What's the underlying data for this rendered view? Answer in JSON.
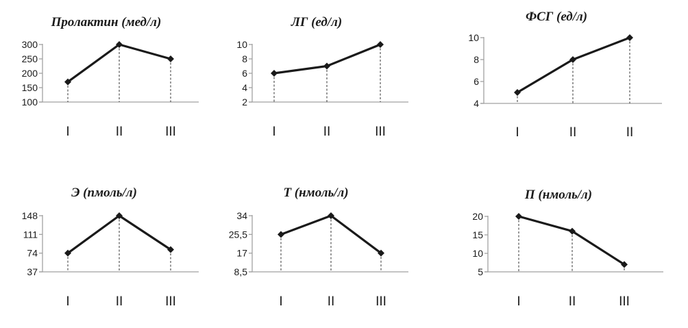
{
  "chart_data": [
    {
      "type": "line",
      "title": "Пролактин (мед/л)",
      "categories": [
        "I",
        "II",
        "III"
      ],
      "yticks": [
        "100",
        "150",
        "200",
        "250",
        "300"
      ],
      "ylim": [
        100,
        300
      ],
      "values": [
        170,
        300,
        250
      ]
    },
    {
      "type": "line",
      "title": "ЛГ (ед/л)",
      "categories": [
        "I",
        "II",
        "III"
      ],
      "yticks": [
        "2",
        "4",
        "6",
        "8",
        "10"
      ],
      "ylim": [
        2,
        10
      ],
      "values": [
        6,
        7,
        10
      ]
    },
    {
      "type": "line",
      "title": "ФСГ (ед/л)",
      "categories": [
        "I",
        "II",
        "II"
      ],
      "yticks": [
        "4",
        "6",
        "8",
        "10"
      ],
      "ylim": [
        4,
        10
      ],
      "values": [
        5,
        8,
        10
      ]
    },
    {
      "type": "line",
      "title": "Э  (пмоль/л)",
      "categories": [
        "I",
        "II",
        "III"
      ],
      "yticks": [
        "37",
        "74",
        "111",
        "148"
      ],
      "ylim": [
        37,
        148
      ],
      "values": [
        74,
        148,
        81
      ]
    },
    {
      "type": "line",
      "title": "Т  (нмоль/л)",
      "categories": [
        "I",
        "II",
        "III"
      ],
      "yticks": [
        "8,5",
        "17",
        "25,5",
        "34"
      ],
      "ylim": [
        8.5,
        34
      ],
      "values": [
        25.5,
        34,
        17
      ]
    },
    {
      "type": "line",
      "title": "П (нмоль/л)",
      "categories": [
        "I",
        "II",
        "III"
      ],
      "yticks": [
        "5",
        "10",
        "15",
        "20"
      ],
      "ylim": [
        5,
        20
      ],
      "values": [
        20,
        16,
        7
      ]
    }
  ]
}
